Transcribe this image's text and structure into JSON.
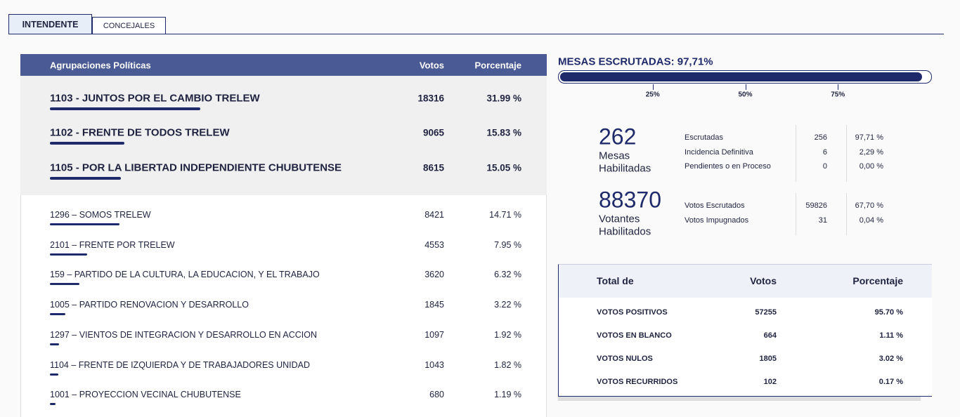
{
  "tabs": [
    "INTENDENTE",
    "CONCEJALES"
  ],
  "results_table": {
    "headers": [
      "Agrupaciones Políticas",
      "Votos",
      "Porcentaje"
    ],
    "featured_rows": [
      {
        "name": "1103 - JUNTOS POR EL CAMBIO TRELEW",
        "votes": "18316",
        "percent": {
          "value": 31.99,
          "label": "31.99 %"
        }
      },
      {
        "name": "1102 - FRENTE DE TODOS TRELEW",
        "votes": "9065",
        "percent": {
          "value": 15.83,
          "label": "15.83 %"
        }
      },
      {
        "name": "1105 - POR LA LIBERTAD INDEPENDIENTE CHUBUTENSE",
        "votes": "8615",
        "percent": {
          "value": 15.05,
          "label": "15.05 %"
        }
      }
    ],
    "rows": [
      {
        "name": "1296 – SOMOS TRELEW",
        "votes": "8421",
        "percent": {
          "value": 14.71,
          "label": "14.71 %"
        }
      },
      {
        "name": "2101 – FRENTE POR TRELEW",
        "votes": "4553",
        "percent": {
          "value": 7.95,
          "label": "7.95 %"
        }
      },
      {
        "name": "159 – PARTIDO DE LA CULTURA, LA EDUCACION, Y EL TRABAJO",
        "votes": "3620",
        "percent": {
          "value": 6.32,
          "label": "6.32 %"
        }
      },
      {
        "name": "1005 – PARTIDO RENOVACION Y DESARROLLO",
        "votes": "1845",
        "percent": {
          "value": 3.22,
          "label": "3.22 %"
        }
      },
      {
        "name": "1297 – VIENTOS DE INTEGRACION Y DESARROLLO EN ACCION",
        "votes": "1097",
        "percent": {
          "value": 1.92,
          "label": "1.92 %"
        }
      },
      {
        "name": "1104 – FRENTE DE IZQUIERDA Y DE TRABAJADORES UNIDAD",
        "votes": "1043",
        "percent": {
          "value": 1.82,
          "label": "1.82 %"
        }
      },
      {
        "name": "1001 – PROYECCION VECINAL CHUBUTENSE",
        "votes": "680",
        "percent": {
          "value": 1.19,
          "label": "1.19 %"
        }
      }
    ]
  },
  "progress": {
    "title": "MESAS ESCRUTADAS:",
    "value": {
      "value": 97.71,
      "label": "97,71%"
    },
    "ticks": [
      {
        "value": 25,
        "label": "25%"
      },
      {
        "value": 50,
        "label": "50%"
      },
      {
        "value": 75,
        "label": "75%"
      }
    ]
  },
  "stats": [
    {
      "number": "262",
      "caption": [
        "Mesas",
        "Habilitadas"
      ],
      "rows": [
        [
          "Escrutadas",
          "256",
          "97,71 %"
        ],
        [
          "Incidencia Definitiva",
          "6",
          "2,29 %"
        ],
        [
          "Pendientes o en Proceso",
          "0",
          "0,00 %"
        ]
      ]
    },
    {
      "number": "88370",
      "caption": [
        "Votantes",
        "Habilitados"
      ],
      "rows": [
        [
          "Votos Escrutados",
          "59826",
          "67,70 %"
        ],
        [
          "Votos Impugnados",
          "31",
          "0,04 %"
        ]
      ]
    }
  ],
  "totals": {
    "headers": [
      "Total de",
      "Votos",
      "Porcentaje"
    ],
    "rows": [
      [
        "VOTOS POSITIVOS",
        "57255",
        "95.70 %"
      ],
      [
        "VOTOS EN BLANCO",
        "664",
        "1.11 %"
      ],
      [
        "VOTOS NULOS",
        "1805",
        "3.02 %"
      ],
      [
        "VOTOS RECURRIDOS",
        "102",
        "0.17 %"
      ]
    ]
  }
}
